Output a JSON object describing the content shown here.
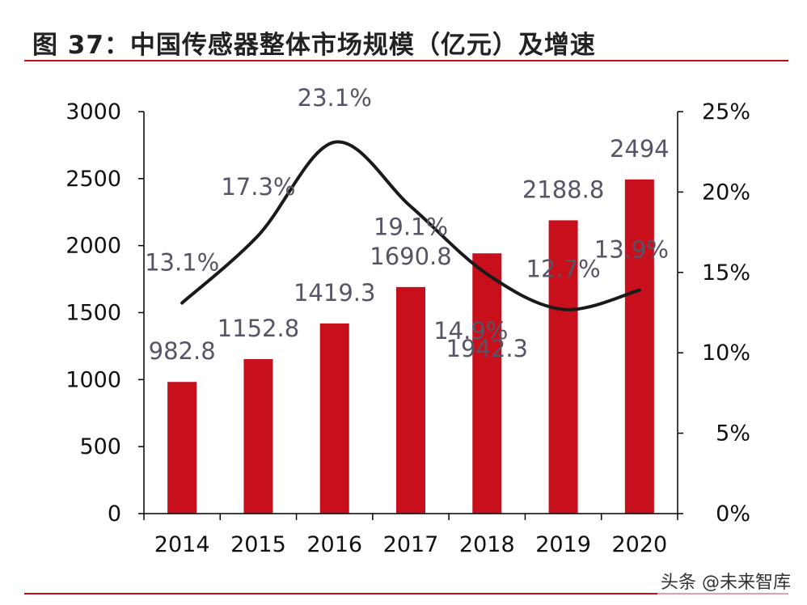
{
  "header": {
    "title": "图 37：中国传感器整体市场规模（亿元）及增速"
  },
  "watermark": {
    "text": "头条 @未来智库"
  },
  "colors": {
    "bar": "#c8101d",
    "line": "#1a1a1a",
    "rule": "#c0101c",
    "axis_text": "#111111",
    "data_label": "#555566"
  },
  "chart_data": {
    "type": "bar+line",
    "title": "中国传感器整体市场规模（亿元）及增速",
    "categories": [
      "2014",
      "2015",
      "2016",
      "2017",
      "2018",
      "2019",
      "2020"
    ],
    "series": [
      {
        "kind": "bar",
        "axis": "left",
        "values": [
          982.8,
          1152.8,
          1419.3,
          1690.8,
          1942.3,
          2188.8,
          2494
        ],
        "labels": [
          "982.8",
          "1152.8",
          "1419.3",
          "1690.8",
          "1942.3",
          "2188.8",
          "2494"
        ]
      },
      {
        "kind": "line",
        "axis": "right",
        "values": [
          13.1,
          17.3,
          23.1,
          19.1,
          14.9,
          12.7,
          13.9
        ],
        "labels": [
          "13.1%",
          "17.3%",
          "23.1%",
          "19.1%",
          "14.9%",
          "12.7%",
          "13.9%"
        ]
      }
    ],
    "y_left": {
      "min": 0,
      "max": 3000,
      "ticks": [
        "0",
        "500",
        "1000",
        "1500",
        "2000",
        "2500",
        "3000"
      ]
    },
    "y_right": {
      "min": 0,
      "max": 25,
      "ticks": [
        "0%",
        "5%",
        "10%",
        "15%",
        "20%",
        "25%"
      ]
    },
    "grid": false,
    "legend": "none"
  }
}
